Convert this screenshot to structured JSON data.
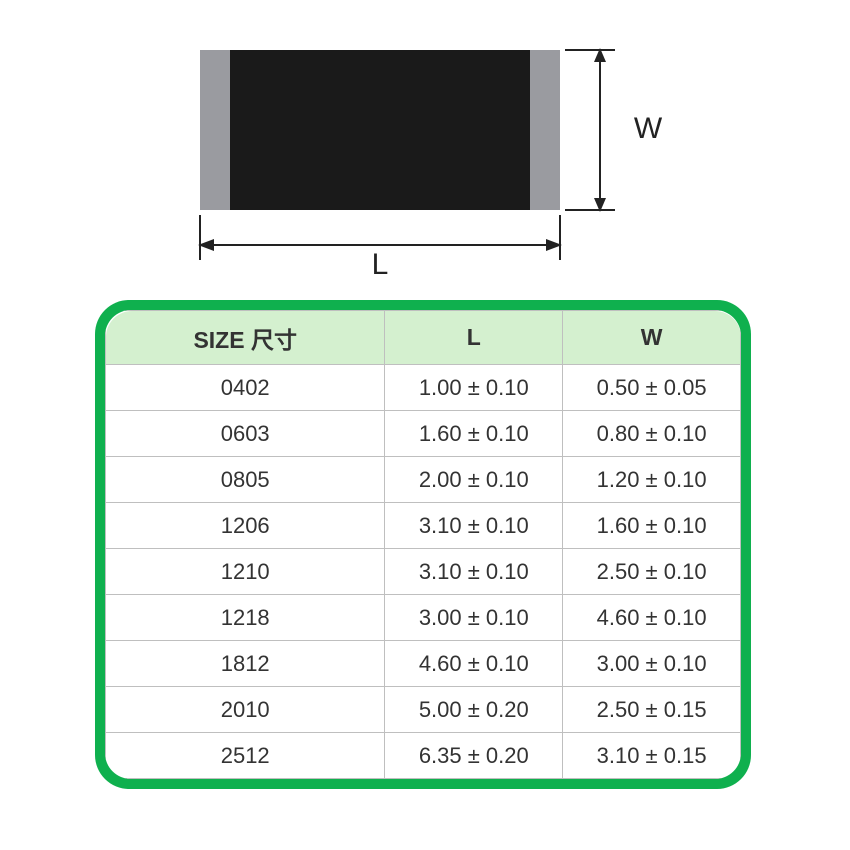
{
  "diagram": {
    "label_length": "L",
    "label_width": "W",
    "colors": {
      "body": "#1a1a1a",
      "terminal": "#9a9ba0",
      "dimension_line": "#222222",
      "dimension_text": "#222222"
    },
    "label_fontsize": 30
  },
  "table": {
    "type": "table",
    "border_color_outer": "#0fb04e",
    "border_color_inner": "#bfbfbf",
    "header_bg": "#d4f0cf",
    "text_color": "#333333",
    "header_fontsize": 23,
    "cell_fontsize": 22,
    "corner_radius": 26,
    "column_widths_pct": [
      44,
      28,
      28
    ],
    "columns": [
      "SIZE 尺寸",
      "L",
      "W"
    ],
    "rows": [
      [
        "0402",
        "1.00 ± 0.10",
        "0.50 ± 0.05"
      ],
      [
        "0603",
        "1.60 ± 0.10",
        "0.80 ± 0.10"
      ],
      [
        "0805",
        "2.00 ± 0.10",
        "1.20 ± 0.10"
      ],
      [
        "1206",
        "3.10 ± 0.10",
        "1.60 ± 0.10"
      ],
      [
        "1210",
        "3.10 ± 0.10",
        "2.50 ± 0.10"
      ],
      [
        "1218",
        "3.00 ± 0.10",
        "4.60 ± 0.10"
      ],
      [
        "1812",
        "4.60 ± 0.10",
        "3.00 ± 0.10"
      ],
      [
        "2010",
        "5.00 ± 0.20",
        "2.50 ± 0.15"
      ],
      [
        "2512",
        "6.35 ± 0.20",
        "3.10 ± 0.15"
      ]
    ]
  }
}
